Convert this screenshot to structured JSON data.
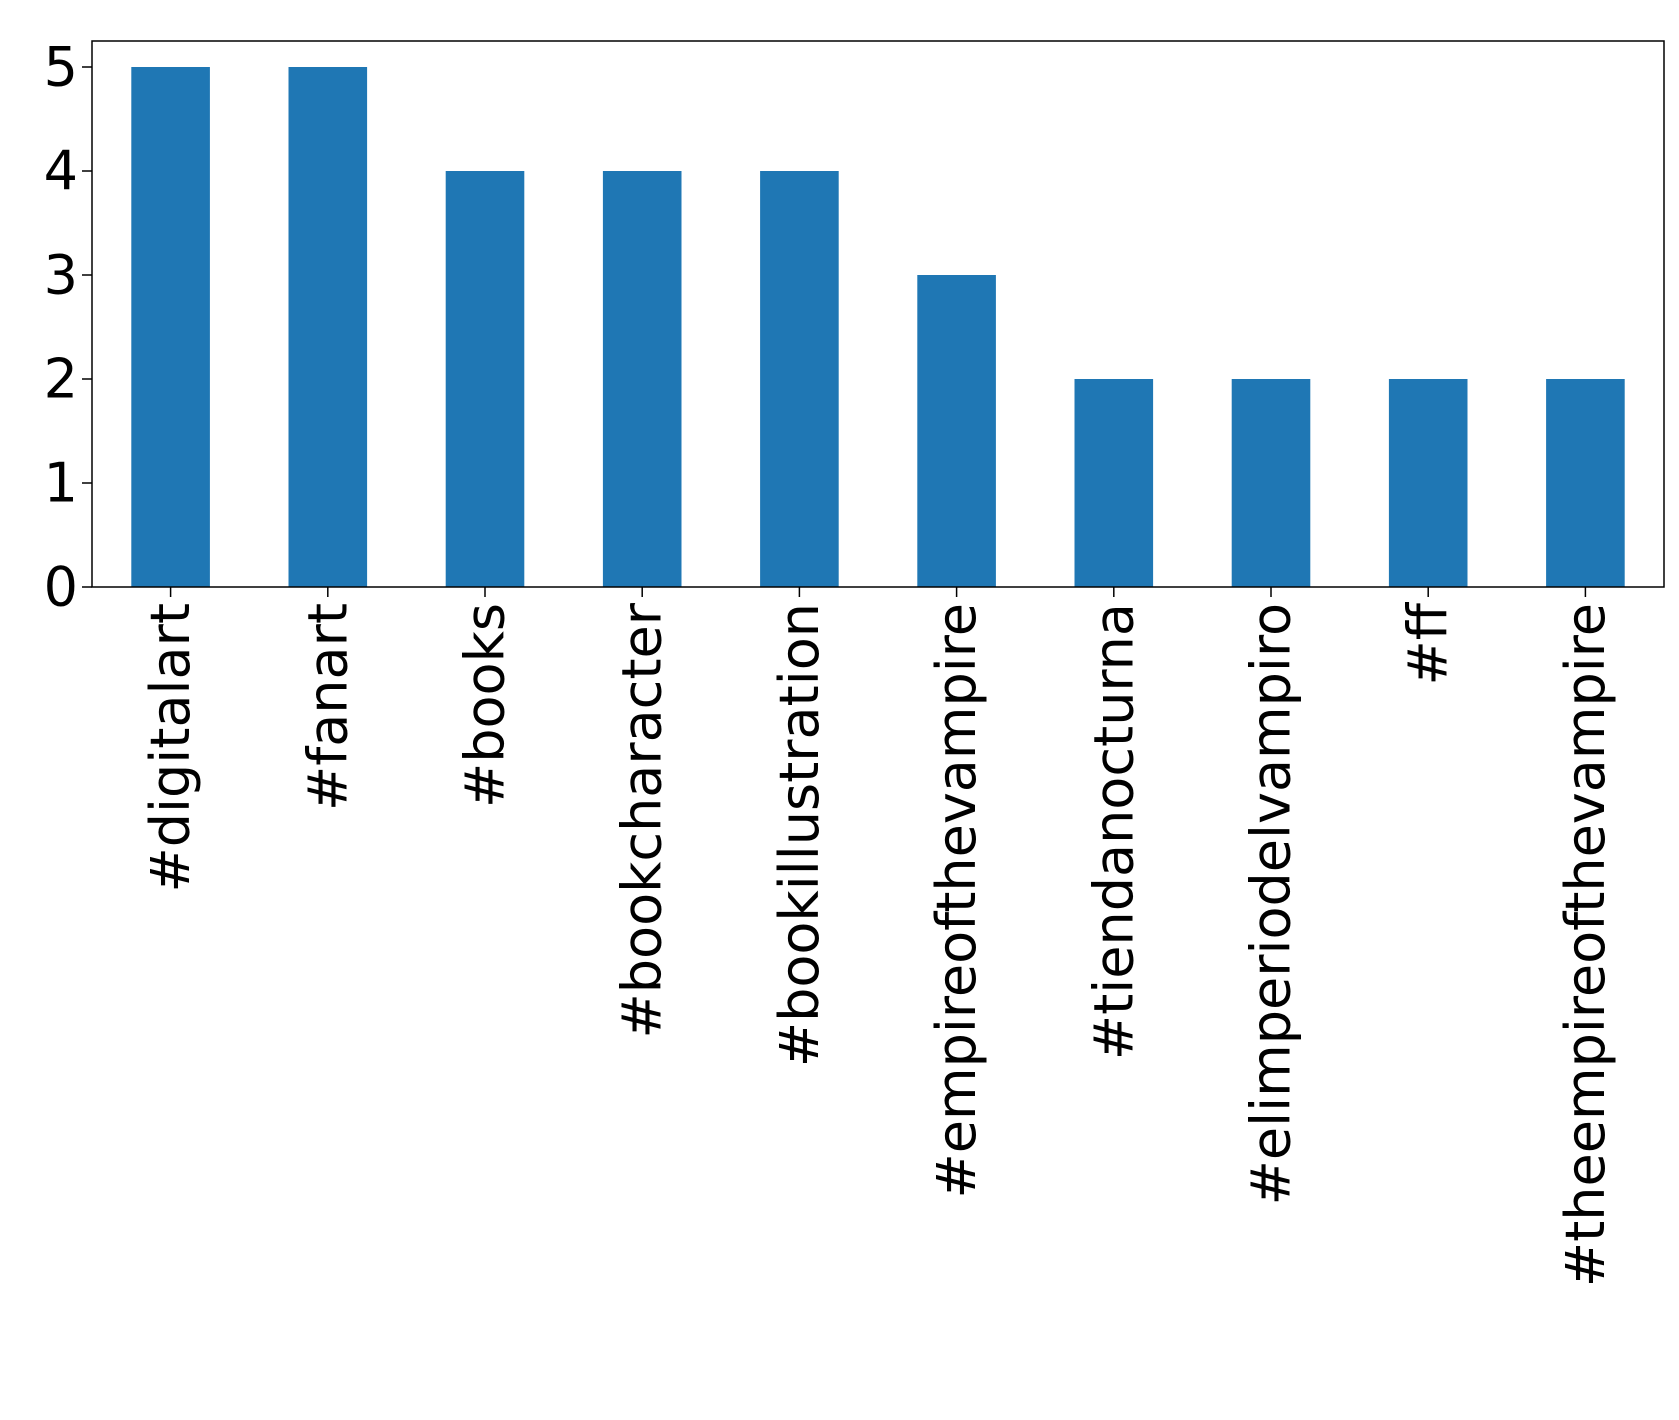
{
  "chart_data": {
    "type": "bar",
    "categories": [
      "#digitalart",
      "#fanart",
      "#books",
      "#bookcharacter",
      "#bookillustration",
      "#empireofthevampire",
      "#tiendanocturna",
      "#elimperiodelvampiro",
      "#ff",
      "#theempireofthevampire"
    ],
    "values": [
      5,
      5,
      4,
      4,
      4,
      3,
      2,
      2,
      2,
      2
    ],
    "yticks": [
      0,
      1,
      2,
      3,
      4,
      5
    ],
    "ylim": [
      0,
      5.25
    ],
    "title": "",
    "xlabel": "",
    "ylabel": "",
    "grid": false,
    "legend": false,
    "bar_color": "#1f77b4"
  }
}
